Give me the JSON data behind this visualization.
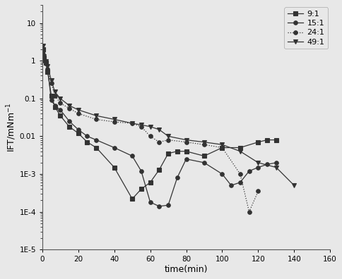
{
  "series": [
    {
      "label": "9:1",
      "marker": "s",
      "linestyle": "-",
      "color": "#333333",
      "x": [
        0.5,
        1,
        2,
        3,
        5,
        7,
        10,
        15,
        20,
        25,
        30,
        40,
        50,
        55,
        60,
        65,
        70,
        75,
        80,
        90,
        100,
        110,
        120,
        125,
        130
      ],
      "y": [
        2.0,
        1.2,
        0.9,
        0.5,
        0.12,
        0.06,
        0.035,
        0.018,
        0.012,
        0.007,
        0.005,
        0.0015,
        0.00022,
        0.0004,
        0.0006,
        0.0013,
        0.0035,
        0.004,
        0.004,
        0.003,
        0.005,
        0.005,
        0.007,
        0.008,
        0.008
      ]
    },
    {
      "label": "15:1",
      "marker": "o",
      "linestyle": "-",
      "color": "#333333",
      "x": [
        0.5,
        1,
        2,
        3,
        5,
        7,
        10,
        15,
        20,
        25,
        30,
        40,
        50,
        55,
        60,
        65,
        70,
        75,
        80,
        90,
        100,
        105,
        110,
        115,
        120,
        125,
        130
      ],
      "y": [
        1.5,
        1.0,
        0.85,
        0.6,
        0.09,
        0.065,
        0.05,
        0.025,
        0.015,
        0.01,
        0.008,
        0.005,
        0.003,
        0.0012,
        0.00018,
        0.00014,
        0.00015,
        0.0008,
        0.0025,
        0.002,
        0.001,
        0.0005,
        0.0006,
        0.0012,
        0.0015,
        0.0018,
        0.002
      ]
    },
    {
      "label": "24:1",
      "marker": "o",
      "linestyle": ":",
      "color": "#333333",
      "x": [
        0.5,
        1,
        2,
        3,
        5,
        7,
        10,
        15,
        20,
        30,
        40,
        50,
        55,
        60,
        65,
        70,
        80,
        90,
        100,
        110,
        115,
        120
      ],
      "y": [
        1.8,
        1.1,
        0.85,
        0.55,
        0.25,
        0.12,
        0.075,
        0.055,
        0.04,
        0.028,
        0.024,
        0.022,
        0.018,
        0.01,
        0.007,
        0.008,
        0.007,
        0.006,
        0.005,
        0.001,
        0.0001,
        0.00035
      ]
    },
    {
      "label": "49:1",
      "marker": "v",
      "linestyle": "-",
      "color": "#333333",
      "x": [
        0.5,
        1,
        2,
        3,
        5,
        7,
        10,
        15,
        20,
        30,
        40,
        50,
        55,
        60,
        65,
        70,
        80,
        90,
        100,
        110,
        120,
        130,
        140
      ],
      "y": [
        2.5,
        1.3,
        0.95,
        0.7,
        0.3,
        0.15,
        0.1,
        0.065,
        0.05,
        0.035,
        0.028,
        0.022,
        0.02,
        0.018,
        0.015,
        0.01,
        0.008,
        0.007,
        0.006,
        0.004,
        0.002,
        0.0015,
        0.0005
      ]
    }
  ],
  "xlabel": "time(min)",
  "ylabel": "IFT/mNm⁻¹",
  "xlim": [
    0,
    160
  ],
  "ylim": [
    1e-05,
    30
  ],
  "xticks": [
    0,
    20,
    40,
    60,
    80,
    100,
    120,
    140,
    160
  ],
  "yticks": [
    1e-05,
    0.0001,
    0.001,
    0.01,
    0.1,
    1,
    10
  ],
  "ytick_labels": [
    "1E-5",
    "1E-4",
    "1E-3",
    "0.01",
    "0.1",
    "1",
    "10"
  ],
  "background_color": "#e8e8e8",
  "legend_loc": "upper right"
}
